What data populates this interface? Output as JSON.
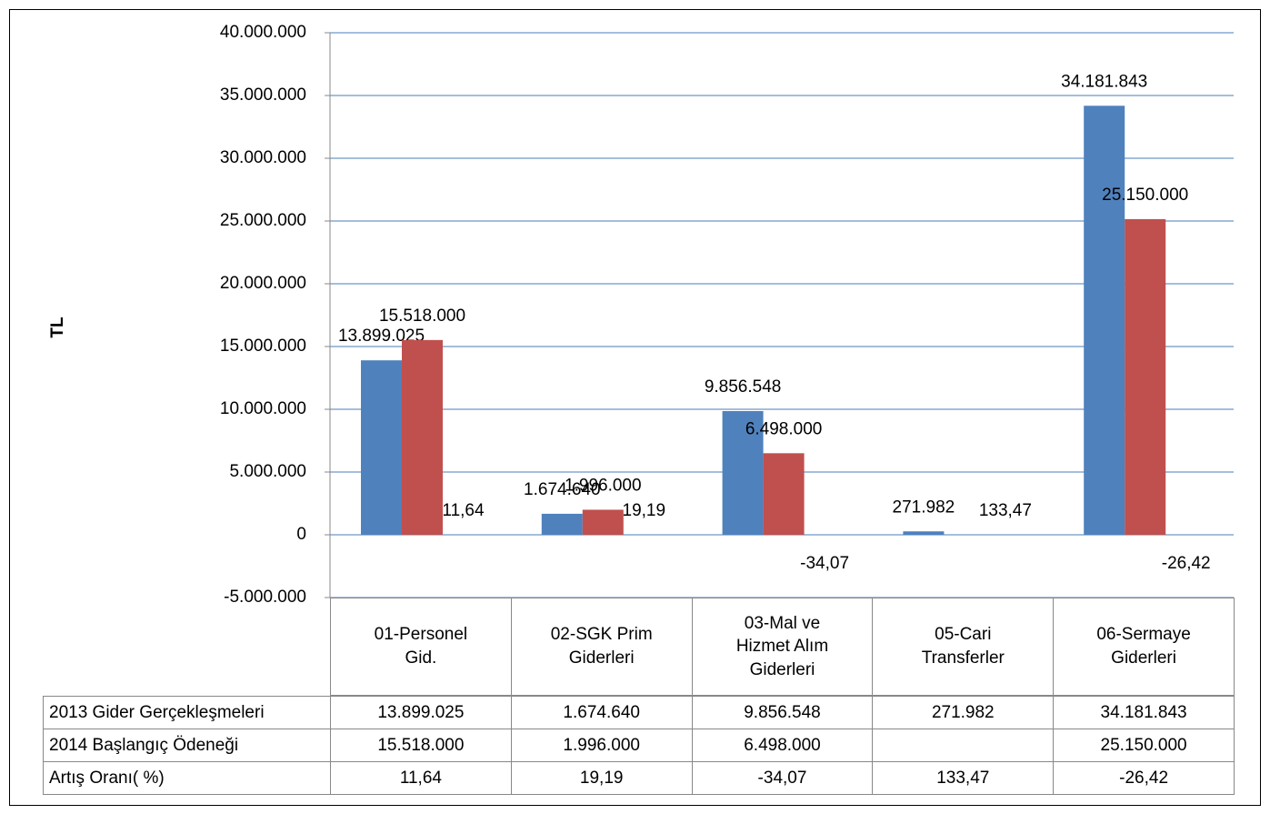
{
  "chart_data": {
    "type": "bar",
    "y_label": "TL",
    "categories": [
      "01-Personel Gid.",
      "02-SGK Prim Giderleri",
      "03-Mal ve Hizmet Alım Giderleri",
      "05-Cari Transferler",
      "06-Sermaye Giderleri"
    ],
    "series": [
      {
        "name": "2013 Gider Gerçekleşmeleri",
        "color": "#4f81bd",
        "values": [
          13899025,
          1674640,
          9856548,
          271982,
          34181843
        ],
        "value_labels": [
          "13.899.025",
          "1.674.640",
          "9.856.548",
          "271.982",
          "34.181.843"
        ]
      },
      {
        "name": "2014 Başlangıç Ödeneği",
        "color": "#c0504d",
        "values": [
          15518000,
          1996000,
          6498000,
          null,
          25150000
        ],
        "value_labels": [
          "15.518.000",
          "1.996.000",
          "6.498.000",
          null,
          "25.150.000"
        ]
      },
      {
        "name": "Artış Oranı( %)",
        "color": "#9bbb59",
        "values": [
          11.64,
          19.19,
          -34.07,
          133.47,
          -26.42
        ],
        "value_labels": [
          "11,64",
          "19,19",
          "-34,07",
          "133,47",
          "-26,42"
        ]
      }
    ],
    "ylim": [
      -5000000,
      40000000
    ],
    "yticks": [
      {
        "value": -5000000,
        "label": "-5.000.000"
      },
      0,
      {
        "value": 5000000,
        "label": "5.000.000"
      },
      {
        "value": 10000000,
        "label": "10.000.000"
      },
      {
        "value": 15000000,
        "label": "15.000.000"
      },
      {
        "value": 20000000,
        "label": "20.000.000"
      },
      {
        "value": 25000000,
        "label": "25.000.000"
      },
      {
        "value": 30000000,
        "label": "30.000.000"
      },
      {
        "value": 35000000,
        "label": "35.000.000"
      },
      {
        "value": 40000000,
        "label": "40.000.000"
      }
    ],
    "grid": true,
    "data_table": true
  }
}
